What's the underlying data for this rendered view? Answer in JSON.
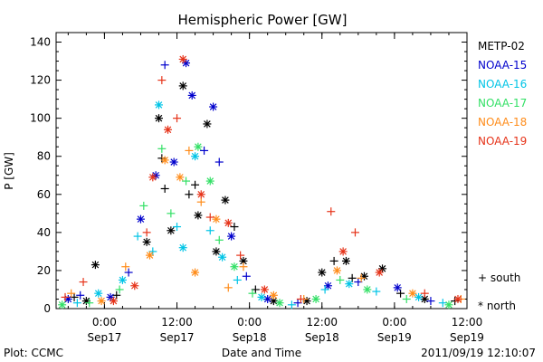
{
  "chart_data": {
    "type": "scatter",
    "title": "Hemispheric Power [GW]",
    "xlabel": "Date and Time",
    "ylabel": "P [GW]",
    "xlim": [
      "2011-09-16 16:00",
      "2011-09-19 12:00"
    ],
    "ylim": [
      0,
      145
    ],
    "yticks": [
      0,
      20,
      40,
      60,
      80,
      100,
      120,
      140
    ],
    "xticks": [
      {
        "t": "2011-09-17 00:00",
        "top": "0:00",
        "bottom": "Sep17"
      },
      {
        "t": "2011-09-17 12:00",
        "top": "12:00",
        "bottom": "Sep17"
      },
      {
        "t": "2011-09-18 00:00",
        "top": "0:00",
        "bottom": "Sep18"
      },
      {
        "t": "2011-09-18 12:00",
        "top": "12:00",
        "bottom": "Sep18"
      },
      {
        "t": "2011-09-19 00:00",
        "top": "0:00",
        "bottom": "Sep19"
      },
      {
        "t": "2011-09-19 12:00",
        "top": "12:00",
        "bottom": "Sep19"
      }
    ],
    "legend_position": "right",
    "marker_legend": [
      {
        "symbol": "+",
        "label": "south"
      },
      {
        "symbol": "*",
        "label": "north"
      }
    ],
    "series": [
      {
        "name": "METP-02",
        "color": "#000000",
        "points": [
          [
            "2011-09-16 19:00",
            6,
            "south"
          ],
          [
            "2011-09-16 21:00",
            4,
            "north"
          ],
          [
            "2011-09-16 22:30",
            23,
            "north"
          ],
          [
            "2011-09-17 02:00",
            7,
            "south"
          ],
          [
            "2011-09-17 07:00",
            35,
            "north"
          ],
          [
            "2011-09-17 09:00",
            100,
            "north"
          ],
          [
            "2011-09-17 09:30",
            79,
            "south"
          ],
          [
            "2011-09-17 10:00",
            63,
            "south"
          ],
          [
            "2011-09-17 11:00",
            41,
            "north"
          ],
          [
            "2011-09-17 13:00",
            117,
            "north"
          ],
          [
            "2011-09-17 14:00",
            60,
            "south"
          ],
          [
            "2011-09-17 15:00",
            65,
            "south"
          ],
          [
            "2011-09-17 15:30",
            49,
            "north"
          ],
          [
            "2011-09-17 17:00",
            97,
            "north"
          ],
          [
            "2011-09-17 18:30",
            30,
            "north"
          ],
          [
            "2011-09-17 20:00",
            57,
            "north"
          ],
          [
            "2011-09-17 21:30",
            43,
            "south"
          ],
          [
            "2011-09-17 23:00",
            25,
            "north"
          ],
          [
            "2011-09-18 01:00",
            10,
            "south"
          ],
          [
            "2011-09-18 04:00",
            4,
            "north"
          ],
          [
            "2011-09-18 09:30",
            4,
            "north"
          ],
          [
            "2011-09-18 12:00",
            19,
            "north"
          ],
          [
            "2011-09-18 14:00",
            25,
            "south"
          ],
          [
            "2011-09-18 16:00",
            25,
            "north"
          ],
          [
            "2011-09-18 17:00",
            16,
            "south"
          ],
          [
            "2011-09-18 19:00",
            17,
            "north"
          ],
          [
            "2011-09-18 22:00",
            21,
            "north"
          ],
          [
            "2011-09-19 01:00",
            8,
            "south"
          ],
          [
            "2011-09-19 05:00",
            5,
            "north"
          ],
          [
            "2011-09-19 10:00",
            4,
            "south"
          ]
        ]
      },
      {
        "name": "NOAA-15",
        "color": "#0000cc",
        "points": [
          [
            "2011-09-16 18:00",
            5,
            "north"
          ],
          [
            "2011-09-16 20:00",
            7,
            "south"
          ],
          [
            "2011-09-17 01:00",
            6,
            "north"
          ],
          [
            "2011-09-17 04:00",
            19,
            "south"
          ],
          [
            "2011-09-17 06:00",
            47,
            "north"
          ],
          [
            "2011-09-17 08:30",
            70,
            "north"
          ],
          [
            "2011-09-17 10:00",
            128,
            "south"
          ],
          [
            "2011-09-17 11:30",
            77,
            "north"
          ],
          [
            "2011-09-17 13:30",
            129,
            "north"
          ],
          [
            "2011-09-17 14:30",
            112,
            "north"
          ],
          [
            "2011-09-17 16:30",
            83,
            "south"
          ],
          [
            "2011-09-17 18:00",
            106,
            "north"
          ],
          [
            "2011-09-17 19:00",
            77,
            "south"
          ],
          [
            "2011-09-17 21:00",
            38,
            "north"
          ],
          [
            "2011-09-17 23:30",
            17,
            "south"
          ],
          [
            "2011-09-18 03:00",
            5,
            "north"
          ],
          [
            "2011-09-18 08:00",
            3,
            "south"
          ],
          [
            "2011-09-18 13:00",
            12,
            "north"
          ],
          [
            "2011-09-18 18:00",
            14,
            "south"
          ],
          [
            "2011-09-19 00:30",
            11,
            "north"
          ],
          [
            "2011-09-19 06:00",
            4,
            "south"
          ]
        ]
      },
      {
        "name": "NOAA-16",
        "color": "#00c4e6",
        "points": [
          [
            "2011-09-16 19:30",
            3,
            "south"
          ],
          [
            "2011-09-16 23:00",
            8,
            "north"
          ],
          [
            "2011-09-17 03:00",
            15,
            "north"
          ],
          [
            "2011-09-17 05:30",
            38,
            "south"
          ],
          [
            "2011-09-17 08:00",
            30,
            "south"
          ],
          [
            "2011-09-17 09:00",
            107,
            "north"
          ],
          [
            "2011-09-17 12:00",
            43,
            "south"
          ],
          [
            "2011-09-17 13:00",
            32,
            "north"
          ],
          [
            "2011-09-17 15:00",
            80,
            "north"
          ],
          [
            "2011-09-17 17:30",
            41,
            "south"
          ],
          [
            "2011-09-17 19:30",
            27,
            "north"
          ],
          [
            "2011-09-17 22:00",
            15,
            "south"
          ],
          [
            "2011-09-18 02:00",
            6,
            "north"
          ],
          [
            "2011-09-18 07:00",
            2,
            "south"
          ],
          [
            "2011-09-18 12:30",
            10,
            "south"
          ],
          [
            "2011-09-18 16:30",
            13,
            "north"
          ],
          [
            "2011-09-18 21:00",
            9,
            "south"
          ],
          [
            "2011-09-19 04:00",
            6,
            "north"
          ],
          [
            "2011-09-19 08:00",
            3,
            "south"
          ]
        ]
      },
      {
        "name": "NOAA-17",
        "color": "#33e066",
        "points": [
          [
            "2011-09-16 17:00",
            2,
            "north"
          ],
          [
            "2011-09-16 21:30",
            3,
            "south"
          ],
          [
            "2011-09-17 02:30",
            10,
            "south"
          ],
          [
            "2011-09-17 06:30",
            54,
            "south"
          ],
          [
            "2011-09-17 09:30",
            84,
            "south"
          ],
          [
            "2011-09-17 11:00",
            50,
            "south"
          ],
          [
            "2011-09-17 13:30",
            67,
            "south"
          ],
          [
            "2011-09-17 15:30",
            85,
            "north"
          ],
          [
            "2011-09-17 17:30",
            67,
            "north"
          ],
          [
            "2011-09-17 19:00",
            36,
            "south"
          ],
          [
            "2011-09-17 21:30",
            22,
            "north"
          ],
          [
            "2011-09-18 00:30",
            8,
            "south"
          ],
          [
            "2011-09-18 05:00",
            3,
            "north"
          ],
          [
            "2011-09-18 11:00",
            5,
            "north"
          ],
          [
            "2011-09-18 15:00",
            15,
            "south"
          ],
          [
            "2011-09-18 19:30",
            10,
            "north"
          ],
          [
            "2011-09-19 02:00",
            5,
            "south"
          ],
          [
            "2011-09-19 09:00",
            2,
            "north"
          ]
        ]
      },
      {
        "name": "NOAA-18",
        "color": "#ff8c1a",
        "points": [
          [
            "2011-09-16 18:30",
            8,
            "south"
          ],
          [
            "2011-09-16 23:30",
            4,
            "north"
          ],
          [
            "2011-09-17 03:30",
            22,
            "south"
          ],
          [
            "2011-09-17 07:30",
            28,
            "north"
          ],
          [
            "2011-09-17 10:00",
            78,
            "north"
          ],
          [
            "2011-09-17 12:30",
            69,
            "north"
          ],
          [
            "2011-09-17 14:00",
            83,
            "south"
          ],
          [
            "2011-09-17 15:00",
            19,
            "north"
          ],
          [
            "2011-09-17 16:00",
            56,
            "south"
          ],
          [
            "2011-09-17 18:30",
            47,
            "north"
          ],
          [
            "2011-09-17 20:30",
            11,
            "south"
          ],
          [
            "2011-09-17 23:00",
            22,
            "south"
          ],
          [
            "2011-09-18 04:00",
            7,
            "north"
          ],
          [
            "2011-09-18 09:00",
            5,
            "south"
          ],
          [
            "2011-09-18 14:30",
            20,
            "north"
          ],
          [
            "2011-09-18 18:30",
            16,
            "south"
          ],
          [
            "2011-09-19 03:00",
            8,
            "north"
          ],
          [
            "2011-09-19 11:00",
            5,
            "south"
          ]
        ]
      },
      {
        "name": "NOAA-19",
        "color": "#e63319",
        "points": [
          [
            "2011-09-16 17:30",
            6,
            "south"
          ],
          [
            "2011-09-16 20:30",
            14,
            "south"
          ],
          [
            "2011-09-17 01:30",
            4,
            "north"
          ],
          [
            "2011-09-17 05:00",
            12,
            "north"
          ],
          [
            "2011-09-17 07:00",
            40,
            "south"
          ],
          [
            "2011-09-17 08:00",
            69,
            "north"
          ],
          [
            "2011-09-17 09:30",
            120,
            "south"
          ],
          [
            "2011-09-17 10:30",
            94,
            "north"
          ],
          [
            "2011-09-17 12:00",
            100,
            "south"
          ],
          [
            "2011-09-17 13:00",
            131,
            "north"
          ],
          [
            "2011-09-17 16:00",
            60,
            "north"
          ],
          [
            "2011-09-17 17:30",
            48,
            "south"
          ],
          [
            "2011-09-17 20:30",
            45,
            "north"
          ],
          [
            "2011-09-17 22:30",
            28,
            "south"
          ],
          [
            "2011-09-18 02:30",
            10,
            "north"
          ],
          [
            "2011-09-18 08:30",
            5,
            "south"
          ],
          [
            "2011-09-18 13:30",
            51,
            "south"
          ],
          [
            "2011-09-18 15:30",
            30,
            "north"
          ],
          [
            "2011-09-18 17:30",
            40,
            "south"
          ],
          [
            "2011-09-18 21:30",
            19,
            "north"
          ],
          [
            "2011-09-19 05:00",
            8,
            "south"
          ],
          [
            "2011-09-19 10:30",
            5,
            "north"
          ]
        ]
      }
    ]
  },
  "footer": {
    "plot_label": "Plot: CCMC",
    "timestamp": "2011/09/19 12:10:07"
  }
}
